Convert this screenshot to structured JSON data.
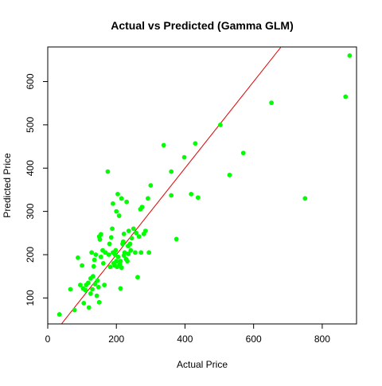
{
  "chart_data": {
    "type": "scatter",
    "title": "Actual vs Predicted (Gamma GLM)",
    "xlabel": "Actual Price",
    "ylabel": "Predicted Price",
    "xlim": [
      0,
      900
    ],
    "ylim": [
      40,
      680
    ],
    "xticks": [
      0,
      200,
      400,
      600,
      800
    ],
    "yticks": [
      100,
      200,
      300,
      400,
      500,
      600
    ],
    "grid": false,
    "colors": {
      "points": "#00ff00",
      "reference_line": "#dd0000",
      "axes": "#000000"
    },
    "reference_line": {
      "type": "identity",
      "intercept": 0,
      "slope": 1
    },
    "series": [
      {
        "points": [
          [
            34,
            62
          ],
          [
            78,
            72
          ],
          [
            66,
            120
          ],
          [
            88,
            193
          ],
          [
            95,
            130
          ],
          [
            100,
            175
          ],
          [
            103,
            122
          ],
          [
            105,
            88
          ],
          [
            110,
            118
          ],
          [
            112,
            130
          ],
          [
            118,
            135
          ],
          [
            120,
            78
          ],
          [
            125,
            110
          ],
          [
            125,
            145
          ],
          [
            128,
            205
          ],
          [
            130,
            120
          ],
          [
            132,
            150
          ],
          [
            134,
            173
          ],
          [
            136,
            188
          ],
          [
            138,
            132
          ],
          [
            140,
            200
          ],
          [
            143,
            105
          ],
          [
            145,
            140
          ],
          [
            148,
            125
          ],
          [
            150,
            90
          ],
          [
            150,
            242
          ],
          [
            152,
            235
          ],
          [
            155,
            195
          ],
          [
            155,
            247
          ],
          [
            160,
            210
          ],
          [
            162,
            180
          ],
          [
            165,
            130
          ],
          [
            168,
            205
          ],
          [
            175,
            392
          ],
          [
            178,
            200
          ],
          [
            180,
            225
          ],
          [
            182,
            172
          ],
          [
            185,
            240
          ],
          [
            188,
            260
          ],
          [
            190,
            205
          ],
          [
            190,
            318
          ],
          [
            192,
            180
          ],
          [
            195,
            175
          ],
          [
            196,
            200
          ],
          [
            198,
            210
          ],
          [
            200,
            185
          ],
          [
            200,
            300
          ],
          [
            202,
            172
          ],
          [
            204,
            340
          ],
          [
            205,
            195
          ],
          [
            208,
            290
          ],
          [
            210,
            178
          ],
          [
            212,
            185
          ],
          [
            212,
            122
          ],
          [
            215,
            170
          ],
          [
            215,
            330
          ],
          [
            218,
            225
          ],
          [
            220,
            230
          ],
          [
            222,
            198
          ],
          [
            222,
            248
          ],
          [
            224,
            205
          ],
          [
            228,
            190
          ],
          [
            230,
            322
          ],
          [
            232,
            185
          ],
          [
            234,
            220
          ],
          [
            235,
            202
          ],
          [
            236,
            255
          ],
          [
            240,
            225
          ],
          [
            242,
            210
          ],
          [
            245,
            238
          ],
          [
            250,
            260
          ],
          [
            255,
            205
          ],
          [
            258,
            250
          ],
          [
            262,
            148
          ],
          [
            266,
            242
          ],
          [
            270,
            305
          ],
          [
            272,
            205
          ],
          [
            275,
            310
          ],
          [
            280,
            248
          ],
          [
            285,
            255
          ],
          [
            292,
            330
          ],
          [
            295,
            205
          ],
          [
            300,
            360
          ],
          [
            338,
            453
          ],
          [
            360,
            392
          ],
          [
            360,
            337
          ],
          [
            375,
            236
          ],
          [
            398,
            425
          ],
          [
            418,
            340
          ],
          [
            430,
            457
          ],
          [
            438,
            332
          ],
          [
            503,
            500
          ],
          [
            530,
            384
          ],
          [
            570,
            435
          ],
          [
            652,
            551
          ],
          [
            750,
            330
          ],
          [
            868,
            565
          ],
          [
            880,
            660
          ]
        ]
      }
    ]
  }
}
